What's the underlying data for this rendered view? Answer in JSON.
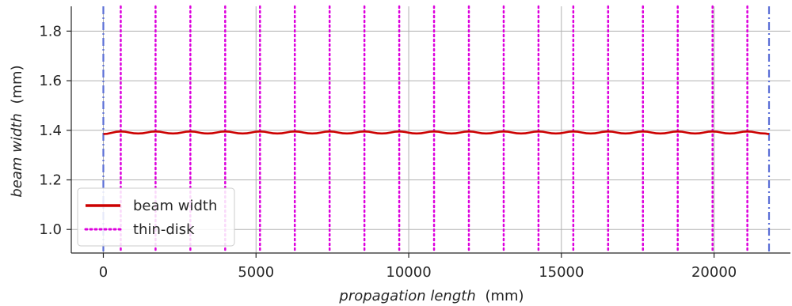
{
  "chart_data": {
    "type": "line",
    "xlabel_italic": "propagation length",
    "xlabel_unit": "(mm)",
    "ylabel_italic": "beam width",
    "ylabel_unit": "(mm)",
    "xlim": [
      -1050,
      22500
    ],
    "ylim": [
      0.905,
      1.9
    ],
    "xticks": [
      0,
      5000,
      10000,
      15000,
      20000
    ],
    "yticks": [
      1.0,
      1.2,
      1.4,
      1.6,
      1.8
    ],
    "xtick_labels": [
      "0",
      "5000",
      "10000",
      "15000",
      "20000"
    ],
    "ytick_labels": [
      "1.0",
      "1.2",
      "1.4",
      "1.6",
      "1.8"
    ],
    "grid": true,
    "legend_position": "lower-left",
    "series": [
      {
        "name": "beam width",
        "color": "#cc0000",
        "style": "solid",
        "x": [
          0,
          570,
          1140,
          1710,
          2280,
          2850,
          3420,
          3990,
          4560,
          5130,
          5700,
          6270,
          6840,
          7410,
          7980,
          8550,
          9120,
          9690,
          10260,
          10830,
          11400,
          11970,
          12540,
          13110,
          13680,
          14250,
          14820,
          15390,
          15960,
          16530,
          17100,
          17670,
          18240,
          18810,
          19380,
          19950,
          20520,
          21090,
          21660,
          21800
        ],
        "y": [
          1.385,
          1.395,
          1.387,
          1.395,
          1.387,
          1.395,
          1.387,
          1.395,
          1.387,
          1.395,
          1.387,
          1.395,
          1.387,
          1.395,
          1.387,
          1.395,
          1.387,
          1.395,
          1.387,
          1.395,
          1.387,
          1.395,
          1.387,
          1.395,
          1.387,
          1.395,
          1.387,
          1.395,
          1.387,
          1.395,
          1.387,
          1.395,
          1.387,
          1.395,
          1.387,
          1.395,
          1.387,
          1.395,
          1.387,
          1.385
        ]
      },
      {
        "name": "thin-disk",
        "color": "#dd00dd",
        "style": "dotted",
        "x_positions": [
          570,
          1710,
          2850,
          3990,
          5130,
          6270,
          7410,
          8550,
          9690,
          10830,
          11970,
          13110,
          14250,
          15390,
          16530,
          17670,
          18810,
          19950,
          21090
        ]
      }
    ],
    "boundary_lines": {
      "color": "#5b6fd6",
      "style": "dashdot",
      "x_positions": [
        0,
        21800
      ]
    }
  }
}
